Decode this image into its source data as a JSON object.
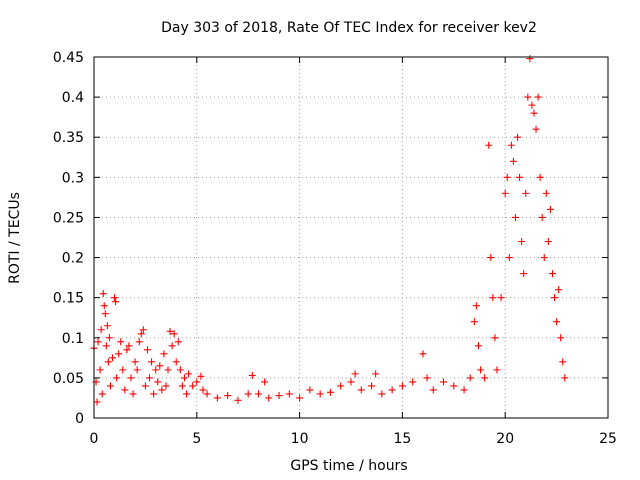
{
  "chart_data": {
    "type": "scatter",
    "title": "Day 303 of 2018, Rate Of TEC Index for receiver kev2",
    "xlabel": "GPS time / hours",
    "ylabel": "ROTI / TECUs",
    "xlim": [
      0,
      25
    ],
    "ylim": [
      0,
      0.45
    ],
    "x_ticks": [
      0,
      5,
      10,
      15,
      20,
      25
    ],
    "y_ticks": [
      0,
      0.05,
      0.1,
      0.15,
      0.2,
      0.25,
      0.3,
      0.35,
      0.4,
      0.45
    ],
    "x_tick_labels": [
      "0",
      "5",
      "10",
      "15",
      "20",
      "25"
    ],
    "y_tick_labels": [
      "0",
      "0.05",
      "0.1",
      "0.15",
      "0.2",
      "0.25",
      "0.3",
      "0.35",
      "0.4",
      "0.45"
    ],
    "grid": true,
    "legend": false,
    "marker": "+",
    "color": "#ff0000",
    "series": [
      {
        "points": [
          [
            0.0,
            0.087
          ],
          [
            0.1,
            0.045
          ],
          [
            0.15,
            0.02
          ],
          [
            0.2,
            0.095
          ],
          [
            0.3,
            0.06
          ],
          [
            0.35,
            0.11
          ],
          [
            0.4,
            0.03
          ],
          [
            0.45,
            0.155
          ],
          [
            0.5,
            0.14
          ],
          [
            0.55,
            0.13
          ],
          [
            0.6,
            0.09
          ],
          [
            0.65,
            0.115
          ],
          [
            0.7,
            0.07
          ],
          [
            0.75,
            0.1
          ],
          [
            0.8,
            0.04
          ],
          [
            0.9,
            0.075
          ],
          [
            1.0,
            0.15
          ],
          [
            1.05,
            0.145
          ],
          [
            1.1,
            0.05
          ],
          [
            1.2,
            0.08
          ],
          [
            1.3,
            0.095
          ],
          [
            1.4,
            0.06
          ],
          [
            1.5,
            0.035
          ],
          [
            1.6,
            0.085
          ],
          [
            1.7,
            0.09
          ],
          [
            1.8,
            0.05
          ],
          [
            1.9,
            0.03
          ],
          [
            2.0,
            0.07
          ],
          [
            2.1,
            0.06
          ],
          [
            2.2,
            0.095
          ],
          [
            2.3,
            0.105
          ],
          [
            2.4,
            0.11
          ],
          [
            2.5,
            0.04
          ],
          [
            2.6,
            0.085
          ],
          [
            2.7,
            0.05
          ],
          [
            2.8,
            0.07
          ],
          [
            2.9,
            0.03
          ],
          [
            3.0,
            0.06
          ],
          [
            3.1,
            0.045
          ],
          [
            3.2,
            0.065
          ],
          [
            3.3,
            0.035
          ],
          [
            3.4,
            0.08
          ],
          [
            3.5,
            0.04
          ],
          [
            3.6,
            0.06
          ],
          [
            3.7,
            0.108
          ],
          [
            3.8,
            0.09
          ],
          [
            3.9,
            0.105
          ],
          [
            4.0,
            0.07
          ],
          [
            4.1,
            0.095
          ],
          [
            4.2,
            0.06
          ],
          [
            4.3,
            0.04
          ],
          [
            4.4,
            0.05
          ],
          [
            4.5,
            0.03
          ],
          [
            4.6,
            0.055
          ],
          [
            4.8,
            0.04
          ],
          [
            5.0,
            0.045
          ],
          [
            5.2,
            0.052
          ],
          [
            5.3,
            0.035
          ],
          [
            5.5,
            0.03
          ],
          [
            6.0,
            0.025
          ],
          [
            6.5,
            0.028
          ],
          [
            7.0,
            0.022
          ],
          [
            7.5,
            0.03
          ],
          [
            7.7,
            0.053
          ],
          [
            8.0,
            0.03
          ],
          [
            8.3,
            0.045
          ],
          [
            8.5,
            0.025
          ],
          [
            9.0,
            0.028
          ],
          [
            9.5,
            0.03
          ],
          [
            10.0,
            0.025
          ],
          [
            10.5,
            0.035
          ],
          [
            11.0,
            0.03
          ],
          [
            11.5,
            0.032
          ],
          [
            12.0,
            0.04
          ],
          [
            12.5,
            0.045
          ],
          [
            12.7,
            0.055
          ],
          [
            13.0,
            0.035
          ],
          [
            13.5,
            0.04
          ],
          [
            13.7,
            0.055
          ],
          [
            14.0,
            0.03
          ],
          [
            14.5,
            0.035
          ],
          [
            15.0,
            0.04
          ],
          [
            15.5,
            0.045
          ],
          [
            16.0,
            0.08
          ],
          [
            16.2,
            0.05
          ],
          [
            16.5,
            0.035
          ],
          [
            17.0,
            0.045
          ],
          [
            17.5,
            0.04
          ],
          [
            18.0,
            0.035
          ],
          [
            18.3,
            0.05
          ],
          [
            18.5,
            0.12
          ],
          [
            18.6,
            0.14
          ],
          [
            18.7,
            0.09
          ],
          [
            18.8,
            0.06
          ],
          [
            19.0,
            0.05
          ],
          [
            19.2,
            0.34
          ],
          [
            19.3,
            0.2
          ],
          [
            19.4,
            0.15
          ],
          [
            19.5,
            0.1
          ],
          [
            19.6,
            0.06
          ],
          [
            19.8,
            0.15
          ],
          [
            20.0,
            0.28
          ],
          [
            20.1,
            0.3
          ],
          [
            20.2,
            0.2
          ],
          [
            20.3,
            0.34
          ],
          [
            20.4,
            0.32
          ],
          [
            20.5,
            0.25
          ],
          [
            20.6,
            0.35
          ],
          [
            20.7,
            0.3
          ],
          [
            20.8,
            0.22
          ],
          [
            20.9,
            0.18
          ],
          [
            21.0,
            0.28
          ],
          [
            21.1,
            0.4
          ],
          [
            21.2,
            0.448
          ],
          [
            21.3,
            0.39
          ],
          [
            21.4,
            0.38
          ],
          [
            21.5,
            0.36
          ],
          [
            21.6,
            0.4
          ],
          [
            21.7,
            0.3
          ],
          [
            21.8,
            0.25
          ],
          [
            21.9,
            0.2
          ],
          [
            22.0,
            0.28
          ],
          [
            22.1,
            0.22
          ],
          [
            22.2,
            0.26
          ],
          [
            22.3,
            0.18
          ],
          [
            22.4,
            0.15
          ],
          [
            22.5,
            0.12
          ],
          [
            22.6,
            0.16
          ],
          [
            22.7,
            0.1
          ],
          [
            22.8,
            0.07
          ],
          [
            22.9,
            0.05
          ]
        ]
      }
    ]
  }
}
